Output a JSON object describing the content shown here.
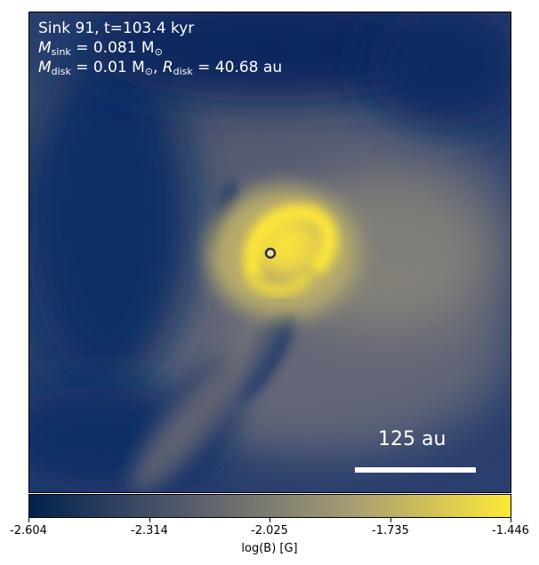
{
  "panel": {
    "line1": "Sink 91, t=103.4 kyr",
    "mass_sink_sym": "M",
    "mass_sink_sub": "sink",
    "mass_sink_val": " = 0.081 M",
    "mass_sink_unit_sub": "⊙",
    "disk_mass_sym": "M",
    "disk_mass_sub": "disk",
    "disk_mass_val": " = 0.01 M",
    "disk_mass_unit_sub": "⊙",
    "disk_radius_sep": ", ",
    "disk_radius_sym": "R",
    "disk_radius_sub": "disk",
    "disk_radius_val": " = 40.68 au"
  },
  "scale": {
    "label": "125 au"
  },
  "colorbar": {
    "label": "log(B) [G]",
    "ticks": [
      "-2.604",
      "-2.314",
      "-2.025",
      "-1.735",
      "-1.446"
    ],
    "colors": [
      "#00224e",
      "#575c6d",
      "#a59c74",
      "#fee838"
    ]
  }
}
